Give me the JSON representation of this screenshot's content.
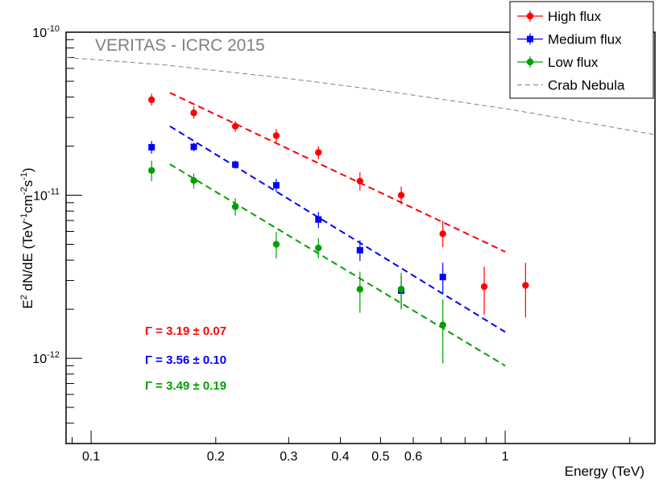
{
  "chart_data": {
    "type": "scatter",
    "title": "",
    "xlabel": "Energy (TeV)",
    "ylabel_parts": [
      "E",
      "2",
      " dN/dE (TeV",
      "-1",
      "cm",
      "-2",
      "s",
      "-1",
      ")"
    ],
    "x_scale": "log",
    "y_scale": "log",
    "xlim": [
      0.087,
      2.3
    ],
    "ylim": [
      3e-13,
      1e-10
    ],
    "x_ticks": [
      {
        "value": 0.1,
        "label": "0.1"
      },
      {
        "value": 0.2,
        "label": "0.2"
      },
      {
        "value": 0.3,
        "label": "0.3"
      },
      {
        "value": 0.4,
        "label": "0.4"
      },
      {
        "value": 0.5,
        "label": "0.5"
      },
      {
        "value": 0.6,
        "label": "0.6"
      },
      {
        "value": 1,
        "label": "1"
      }
    ],
    "y_ticks": [
      {
        "value": 1e-12,
        "base": "10",
        "exp": "-12"
      },
      {
        "value": 1e-11,
        "base": "10",
        "exp": "-11"
      },
      {
        "value": 1e-10,
        "base": "10",
        "exp": "-10"
      }
    ],
    "annotation": "VERITAS - ICRC 2015",
    "legend_position": "top-right",
    "series": [
      {
        "name": "High flux",
        "color": "#ff0000",
        "marker": "circle",
        "points": [
          {
            "x": 0.14,
            "y": 3.85e-11,
            "lo": 3.55e-11,
            "hi": 4.2e-11
          },
          {
            "x": 0.177,
            "y": 3.2e-11,
            "lo": 2.95e-11,
            "hi": 3.5e-11
          },
          {
            "x": 0.223,
            "y": 2.65e-11,
            "lo": 2.45e-11,
            "hi": 2.85e-11
          },
          {
            "x": 0.28,
            "y": 2.32e-11,
            "lo": 2.12e-11,
            "hi": 2.55e-11
          },
          {
            "x": 0.354,
            "y": 1.83e-11,
            "lo": 1.66e-11,
            "hi": 2e-11
          },
          {
            "x": 0.446,
            "y": 1.22e-11,
            "lo": 1.07e-11,
            "hi": 1.38e-11
          },
          {
            "x": 0.561,
            "y": 1e-11,
            "lo": 8.8e-12,
            "hi": 1.13e-11
          },
          {
            "x": 0.707,
            "y": 5.8e-12,
            "lo": 4.8e-12,
            "hi": 7e-12
          },
          {
            "x": 0.89,
            "y": 2.75e-12,
            "lo": 1.85e-12,
            "hi": 3.65e-12
          },
          {
            "x": 1.12,
            "y": 2.8e-12,
            "lo": 1.78e-12,
            "hi": 3.85e-12
          }
        ],
        "fit": {
          "x": [
            0.155,
            1.0
          ],
          "y": [
            4.25e-11,
            4.5e-12
          ],
          "index_label": "Γ = 3.19 ± 0.07"
        }
      },
      {
        "name": "Medium flux",
        "color": "#0000ff",
        "marker": "square",
        "points": [
          {
            "x": 0.14,
            "y": 1.97e-11,
            "lo": 1.8e-11,
            "hi": 2.15e-11
          },
          {
            "x": 0.177,
            "y": 1.98e-11,
            "lo": 1.86e-11,
            "hi": 2.1e-11
          },
          {
            "x": 0.223,
            "y": 1.54e-11,
            "lo": 1.46e-11,
            "hi": 1.63e-11
          },
          {
            "x": 0.28,
            "y": 1.15e-11,
            "lo": 1.05e-11,
            "hi": 1.26e-11
          },
          {
            "x": 0.354,
            "y": 7.1e-12,
            "lo": 6.3e-12,
            "hi": 7.9e-12
          },
          {
            "x": 0.446,
            "y": 4.6e-12,
            "lo": 3.95e-12,
            "hi": 5.3e-12
          },
          {
            "x": 0.561,
            "y": 2.6e-12,
            "lo": 2e-12,
            "hi": 3.2e-12
          },
          {
            "x": 0.707,
            "y": 3.15e-12,
            "lo": 2.5e-12,
            "hi": 3.85e-12
          }
        ],
        "fit": {
          "x": [
            0.155,
            1.0
          ],
          "y": [
            2.65e-11,
            1.45e-12
          ],
          "index_label": "Γ = 3.56 ± 0.10"
        }
      },
      {
        "name": "Low flux",
        "color": "#00a000",
        "marker": "circle",
        "points": [
          {
            "x": 0.14,
            "y": 1.42e-11,
            "lo": 1.22e-11,
            "hi": 1.63e-11
          },
          {
            "x": 0.177,
            "y": 1.23e-11,
            "lo": 1.1e-11,
            "hi": 1.36e-11
          },
          {
            "x": 0.223,
            "y": 8.5e-12,
            "lo": 7.5e-12,
            "hi": 9.6e-12
          },
          {
            "x": 0.28,
            "y": 5e-12,
            "lo": 4.1e-12,
            "hi": 5.95e-12
          },
          {
            "x": 0.354,
            "y": 4.75e-12,
            "lo": 4.1e-12,
            "hi": 5.45e-12
          },
          {
            "x": 0.446,
            "y": 2.65e-12,
            "lo": 1.9e-12,
            "hi": 3.4e-12
          },
          {
            "x": 0.561,
            "y": 2.65e-12,
            "lo": 2e-12,
            "hi": 3.35e-12
          },
          {
            "x": 0.707,
            "y": 1.6e-12,
            "lo": 9.3e-13,
            "hi": 2.3e-12
          }
        ],
        "fit": {
          "x": [
            0.155,
            1.0
          ],
          "y": [
            1.55e-11,
            9e-13
          ],
          "index_label": "Γ = 3.49 ± 0.19"
        }
      },
      {
        "name": "Crab Nebula",
        "color": "#808080",
        "marker": "line",
        "curve": {
          "x": [
            0.087,
            0.15,
            0.3,
            0.5,
            1.0,
            1.5,
            2.3
          ],
          "y": [
            7e-11,
            6.3e-11,
            5.2e-11,
            4.4e-11,
            3.4e-11,
            2.85e-11,
            2.35e-11
          ]
        }
      }
    ]
  }
}
